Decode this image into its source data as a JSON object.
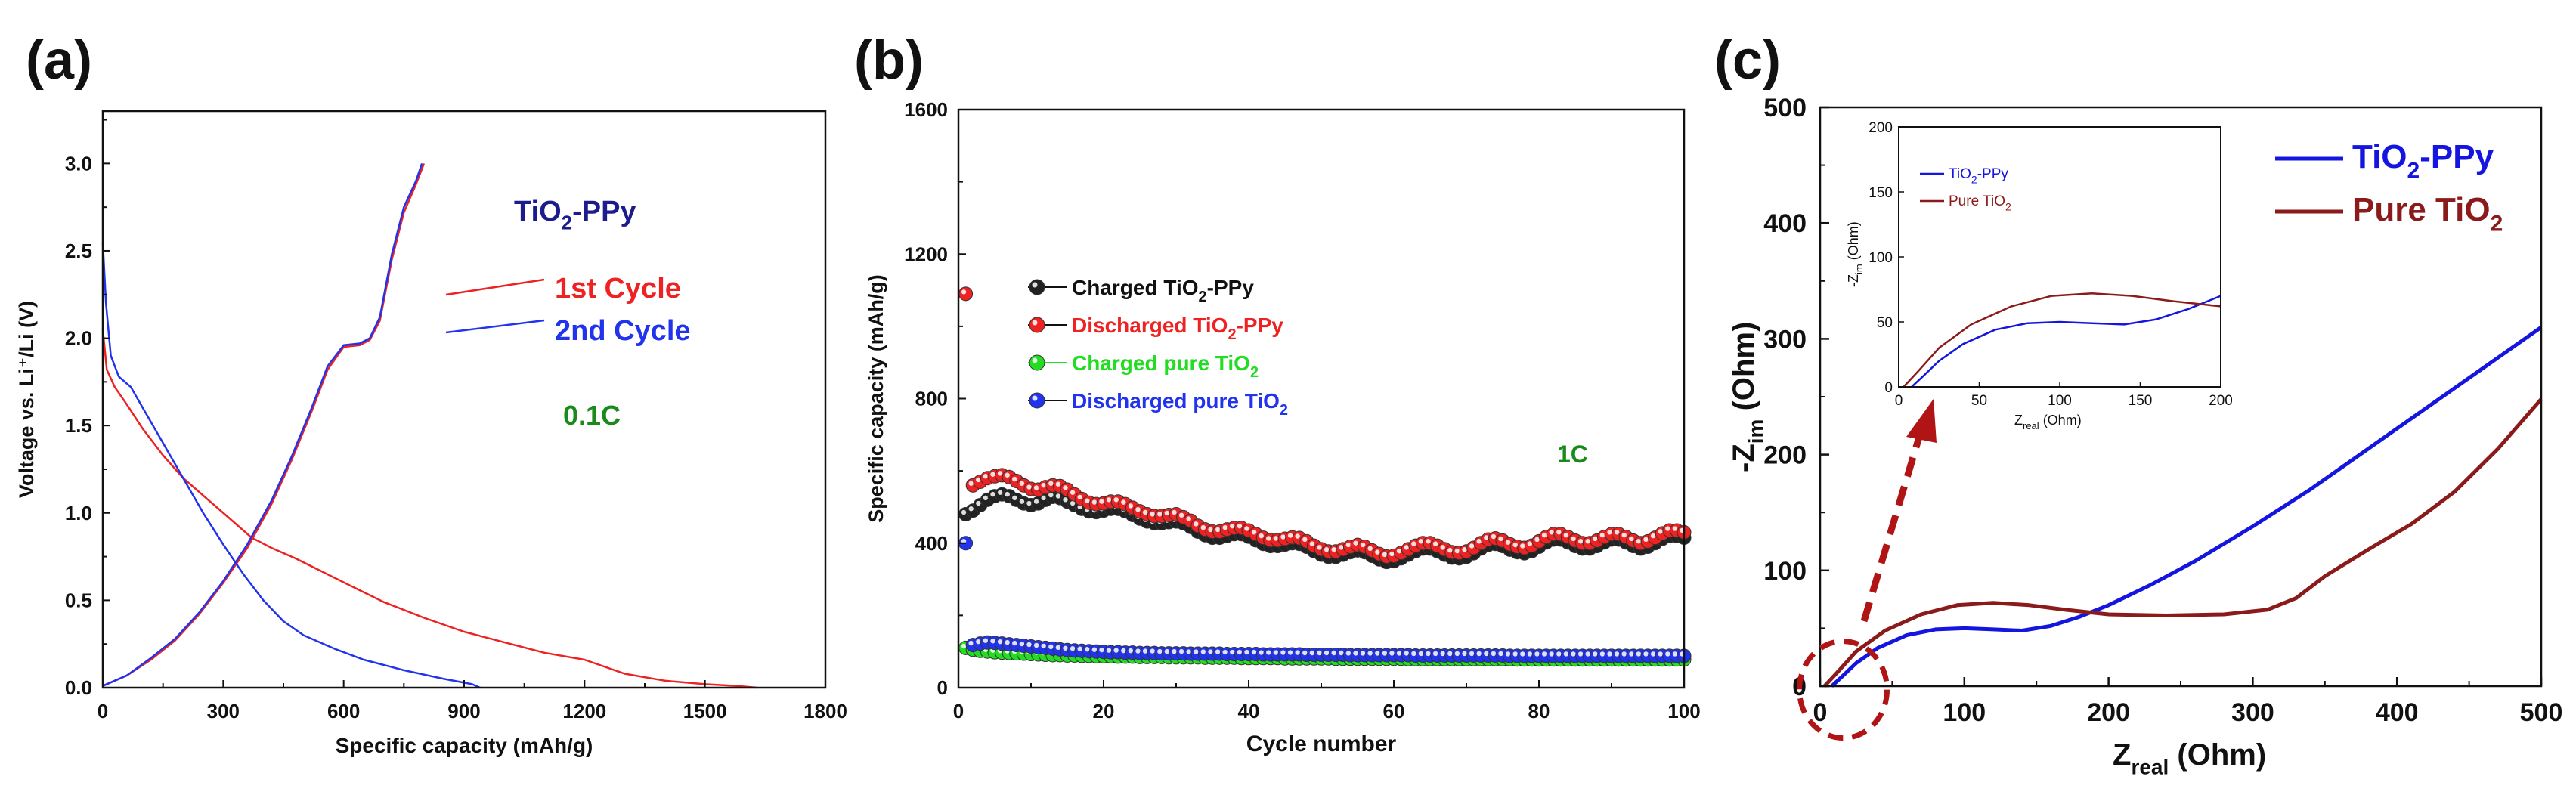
{
  "chart_data": [
    {
      "panel_label": "(a)",
      "type": "line",
      "xlabel": "Specific capacity (mAh/g)",
      "ylabel": "Voltage vs. Li⁺/Li (V)",
      "xlim": [
        0,
        1800
      ],
      "ylim": [
        0,
        3.3
      ],
      "xticks": [
        "0",
        "300",
        "600",
        "900",
        "1200",
        "1500",
        "1800"
      ],
      "yticks": [
        "0.0",
        "0.5",
        "1.0",
        "1.5",
        "2.0",
        "2.5",
        "3.0"
      ],
      "annotations": {
        "material": "TiO",
        "material_sub": "2",
        "material_suffix": "-PPy",
        "rate": "0.1C"
      },
      "colors": {
        "first": "#ee2222",
        "second": "#2233ee",
        "material": "#1c1c8c",
        "rate": "#1a8a1a"
      },
      "series": [
        {
          "name": "1st Cycle",
          "role": "discharge",
          "points": [
            [
              0,
              2.05
            ],
            [
              10,
              1.82
            ],
            [
              30,
              1.72
            ],
            [
              60,
              1.62
            ],
            [
              100,
              1.48
            ],
            [
              150,
              1.33
            ],
            [
              200,
              1.2
            ],
            [
              260,
              1.08
            ],
            [
              320,
              0.96
            ],
            [
              370,
              0.86
            ],
            [
              420,
              0.8
            ],
            [
              480,
              0.74
            ],
            [
              550,
              0.66
            ],
            [
              620,
              0.58
            ],
            [
              700,
              0.49
            ],
            [
              800,
              0.4
            ],
            [
              900,
              0.32
            ],
            [
              1000,
              0.26
            ],
            [
              1100,
              0.2
            ],
            [
              1200,
              0.16
            ],
            [
              1300,
              0.08
            ],
            [
              1400,
              0.04
            ],
            [
              1500,
              0.02
            ],
            [
              1580,
              0.01
            ],
            [
              1630,
              0
            ]
          ]
        },
        {
          "name": "1st Cycle",
          "role": "charge",
          "points": [
            [
              0,
              0.01
            ],
            [
              60,
              0.07
            ],
            [
              120,
              0.16
            ],
            [
              180,
              0.27
            ],
            [
              240,
              0.42
            ],
            [
              300,
              0.6
            ],
            [
              360,
              0.8
            ],
            [
              420,
              1.05
            ],
            [
              470,
              1.3
            ],
            [
              520,
              1.58
            ],
            [
              560,
              1.82
            ],
            [
              600,
              1.95
            ],
            [
              640,
              1.96
            ],
            [
              665,
              1.99
            ],
            [
              690,
              2.1
            ],
            [
              720,
              2.45
            ],
            [
              750,
              2.72
            ],
            [
              780,
              2.88
            ],
            [
              800,
              3.0
            ]
          ]
        },
        {
          "name": "2nd Cycle",
          "role": "discharge",
          "points": [
            [
              0,
              2.55
            ],
            [
              8,
              2.2
            ],
            [
              20,
              1.9
            ],
            [
              40,
              1.78
            ],
            [
              70,
              1.72
            ],
            [
              100,
              1.6
            ],
            [
              150,
              1.4
            ],
            [
              200,
              1.2
            ],
            [
              250,
              1.0
            ],
            [
              300,
              0.82
            ],
            [
              350,
              0.65
            ],
            [
              400,
              0.5
            ],
            [
              450,
              0.38
            ],
            [
              500,
              0.3
            ],
            [
              580,
              0.22
            ],
            [
              650,
              0.16
            ],
            [
              750,
              0.1
            ],
            [
              850,
              0.05
            ],
            [
              920,
              0.02
            ],
            [
              940,
              0
            ]
          ]
        },
        {
          "name": "2nd Cycle",
          "role": "charge",
          "points": [
            [
              0,
              0.01
            ],
            [
              60,
              0.07
            ],
            [
              120,
              0.17
            ],
            [
              180,
              0.28
            ],
            [
              240,
              0.43
            ],
            [
              300,
              0.61
            ],
            [
              360,
              0.82
            ],
            [
              420,
              1.07
            ],
            [
              470,
              1.32
            ],
            [
              520,
              1.6
            ],
            [
              560,
              1.84
            ],
            [
              600,
              1.96
            ],
            [
              640,
              1.97
            ],
            [
              665,
              2.0
            ],
            [
              690,
              2.12
            ],
            [
              720,
              2.48
            ],
            [
              750,
              2.75
            ],
            [
              780,
              2.9
            ],
            [
              795,
              3.0
            ]
          ]
        }
      ],
      "legend": [
        {
          "label": "1st Cycle",
          "color": "#ee2222"
        },
        {
          "label": "2nd Cycle",
          "color": "#2233ee"
        }
      ]
    },
    {
      "panel_label": "(b)",
      "type": "scatter",
      "xlabel": "Cycle number",
      "ylabel": "Specific capacity (mAh/g)",
      "xlim": [
        0,
        100
      ],
      "ylim": [
        0,
        1600
      ],
      "xticks": [
        "0",
        "20",
        "40",
        "60",
        "80",
        "100"
      ],
      "yticks": [
        "0",
        "400",
        "800",
        "1200",
        "1600"
      ],
      "annotations": {
        "rate": "1C"
      },
      "colors": {
        "rate": "#1a8a1a"
      },
      "series": [
        {
          "name_main": "Charged TiO",
          "name_sub": "2",
          "name_suffix": "-PPy",
          "color": "#222222",
          "text_color": "#111111",
          "values": [
            480,
            490,
            505,
            520,
            530,
            535,
            530,
            520,
            510,
            505,
            510,
            520,
            528,
            525,
            515,
            505,
            495,
            488,
            486,
            490,
            495,
            495,
            488,
            478,
            468,
            460,
            455,
            455,
            458,
            460,
            455,
            445,
            432,
            422,
            415,
            415,
            420,
            425,
            425,
            418,
            408,
            398,
            392,
            392,
            396,
            400,
            398,
            390,
            378,
            368,
            362,
            362,
            368,
            375,
            380,
            375,
            365,
            355,
            348,
            350,
            358,
            368,
            378,
            385,
            385,
            378,
            368,
            360,
            358,
            362,
            372,
            385,
            395,
            398,
            392,
            382,
            375,
            372,
            378,
            390,
            402,
            410,
            410,
            402,
            392,
            385,
            385,
            392,
            402,
            410,
            410,
            402,
            392,
            385,
            390,
            400,
            412,
            420,
            420,
            415
          ]
        },
        {
          "name_main": "Discharged TiO",
          "name_sub": "2",
          "name_suffix": "-PPy",
          "color": "#ee2222",
          "text_color": "#ee2222",
          "values": [
            1090,
            560,
            570,
            580,
            585,
            588,
            583,
            572,
            560,
            550,
            548,
            555,
            560,
            558,
            548,
            535,
            522,
            512,
            508,
            510,
            515,
            515,
            508,
            498,
            488,
            480,
            475,
            475,
            478,
            480,
            472,
            462,
            448,
            438,
            432,
            432,
            438,
            442,
            442,
            435,
            425,
            415,
            408,
            408,
            412,
            416,
            414,
            405,
            393,
            383,
            377,
            377,
            383,
            390,
            395,
            390,
            380,
            370,
            363,
            365,
            373,
            383,
            393,
            400,
            400,
            393,
            383,
            375,
            373,
            377,
            387,
            400,
            410,
            413,
            407,
            397,
            390,
            387,
            393,
            405,
            417,
            425,
            425,
            417,
            407,
            400,
            400,
            407,
            417,
            425,
            425,
            417,
            407,
            400,
            405,
            415,
            427,
            435,
            435,
            430
          ]
        },
        {
          "name_main": "Charged pure TiO",
          "name_sub": "2",
          "name_suffix": "",
          "color": "#22dd22",
          "text_color": "#22dd22",
          "values": [
            110,
            105,
            102,
            100,
            98,
            97,
            96,
            95,
            94,
            93,
            92,
            91,
            90,
            90,
            89,
            89,
            88,
            88,
            87,
            87,
            87,
            86,
            86,
            86,
            85,
            85,
            85,
            85,
            84,
            84,
            84,
            84,
            84,
            83,
            83,
            83,
            83,
            83,
            82,
            82,
            82,
            82,
            82,
            82,
            81,
            81,
            81,
            81,
            81,
            81,
            81,
            80,
            80,
            80,
            80,
            80,
            80,
            80,
            80,
            80,
            80,
            79,
            79,
            79,
            79,
            79,
            79,
            79,
            79,
            79,
            79,
            79,
            79,
            79,
            79,
            79,
            78,
            78,
            78,
            78,
            78,
            78,
            78,
            78,
            78,
            78,
            78,
            78,
            78,
            78,
            78,
            78,
            78,
            78,
            78,
            78,
            78,
            78,
            78,
            78
          ]
        },
        {
          "name_main": "Discharged pure TiO",
          "name_sub": "2",
          "name_suffix": "",
          "color": "#2233ee",
          "text_color": "#2233ee",
          "values": [
            400,
            118,
            122,
            125,
            124,
            122,
            120,
            118,
            116,
            114,
            112,
            110,
            108,
            106,
            104,
            103,
            102,
            101,
            100,
            99,
            98,
            98,
            97,
            97,
            96,
            96,
            96,
            95,
            95,
            95,
            95,
            94,
            94,
            94,
            94,
            94,
            93,
            93,
            93,
            93,
            93,
            92,
            92,
            92,
            92,
            92,
            92,
            91,
            91,
            91,
            91,
            91,
            91,
            90,
            90,
            90,
            90,
            90,
            90,
            90,
            90,
            90,
            89,
            89,
            89,
            89,
            89,
            89,
            89,
            89,
            89,
            89,
            89,
            89,
            89,
            88,
            88,
            88,
            88,
            88,
            88,
            88,
            88,
            88,
            88,
            88,
            88,
            88,
            88,
            88,
            88,
            88,
            88,
            88,
            88,
            88,
            88,
            88,
            88,
            88
          ]
        }
      ]
    },
    {
      "panel_label": "(c)",
      "type": "line",
      "xlabel_main": "Z",
      "xlabel_sub": "real",
      "xlabel_suffix": " (Ohm)",
      "ylabel_main": "-Z",
      "ylabel_sub": "im",
      "ylabel_suffix": " (Ohm)",
      "xlim": [
        0,
        500
      ],
      "ylim": [
        0,
        500
      ],
      "xticks": [
        "0",
        "100",
        "200",
        "300",
        "400",
        "500"
      ],
      "yticks": [
        "0",
        "100",
        "200",
        "300",
        "400",
        "500"
      ],
      "colors": {
        "tio2_ppy": "#1515e0",
        "pure_tio2": "#8b1a1a",
        "arrow": "#b01414"
      },
      "series": [
        {
          "name_main": "TiO",
          "name_sub": "2",
          "name_suffix": "-PPy",
          "color": "#1515e0",
          "points": [
            [
              8,
              0
            ],
            [
              15,
              8
            ],
            [
              25,
              20
            ],
            [
              40,
              33
            ],
            [
              60,
              44
            ],
            [
              80,
              49
            ],
            [
              100,
              50
            ],
            [
              120,
              49
            ],
            [
              140,
              48
            ],
            [
              160,
              52
            ],
            [
              180,
              60
            ],
            [
              200,
              70
            ],
            [
              230,
              88
            ],
            [
              260,
              108
            ],
            [
              300,
              138
            ],
            [
              340,
              170
            ],
            [
              380,
              205
            ],
            [
              420,
              240
            ],
            [
              460,
              275
            ],
            [
              500,
              310
            ]
          ]
        },
        {
          "name_main": "Pure TiO",
          "name_sub": "2",
          "name_suffix": "",
          "color": "#8b1a1a",
          "points": [
            [
              3,
              0
            ],
            [
              12,
              12
            ],
            [
              25,
              30
            ],
            [
              45,
              48
            ],
            [
              70,
              62
            ],
            [
              95,
              70
            ],
            [
              120,
              72
            ],
            [
              145,
              70
            ],
            [
              170,
              66
            ],
            [
              200,
              62
            ],
            [
              240,
              61
            ],
            [
              280,
              62
            ],
            [
              310,
              66
            ],
            [
              330,
              76
            ],
            [
              350,
              95
            ],
            [
              380,
              118
            ],
            [
              410,
              140
            ],
            [
              440,
              168
            ],
            [
              470,
              205
            ],
            [
              500,
              248
            ]
          ]
        }
      ],
      "inset": {
        "xlabel_main": "Z",
        "xlabel_sub": "real",
        "xlabel_suffix": " (Ohm)",
        "ylabel_main": "-Z",
        "ylabel_sub": "im",
        "ylabel_suffix": " (Ohm)",
        "xlim": [
          0,
          200
        ],
        "ylim": [
          0,
          200
        ],
        "xticks": [
          "0",
          "50",
          "100",
          "150",
          "200"
        ],
        "yticks": [
          "0",
          "50",
          "100",
          "150",
          "200"
        ],
        "legend": [
          {
            "name_main": "TiO",
            "name_sub": "2",
            "name_suffix": "-PPy",
            "color": "#1515e0"
          },
          {
            "name_main": "Pure TiO",
            "name_sub": "2",
            "name_suffix": "",
            "color": "#8b1a1a"
          }
        ]
      }
    }
  ]
}
